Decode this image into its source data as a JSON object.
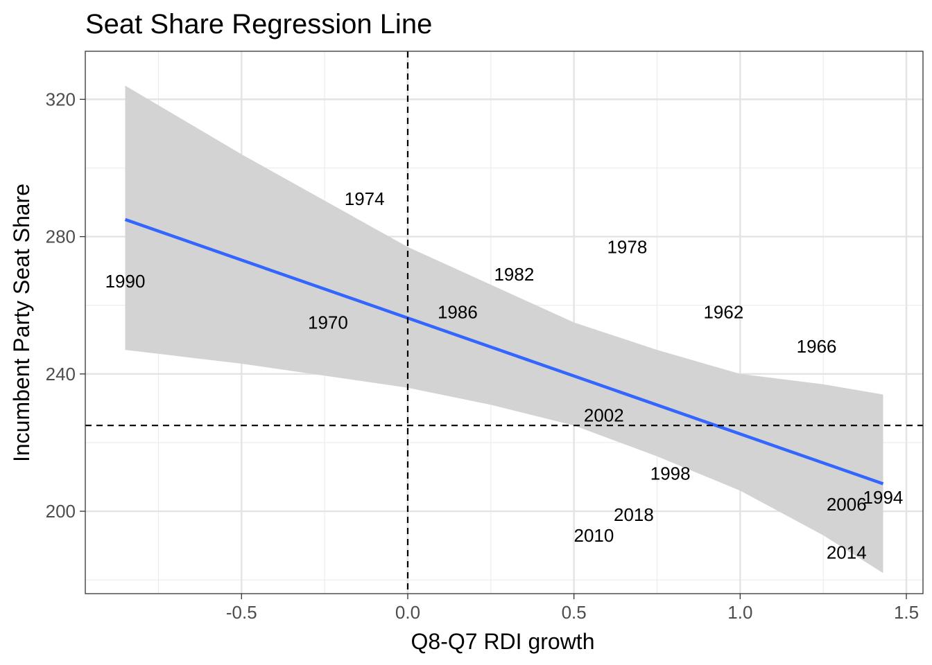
{
  "chart_data": {
    "type": "scatter",
    "title": "Seat Share Regression Line",
    "xlabel": "Q8-Q7 RDI growth",
    "ylabel": "Incumbent Party Seat Share",
    "xlim": [
      -0.97,
      1.55
    ],
    "ylim": [
      176,
      334
    ],
    "x_ticks": [
      -0.5,
      0.0,
      0.5,
      1.0,
      1.5
    ],
    "x_tick_labels": [
      "-0.5",
      "0.0",
      "0.5",
      "1.0",
      "1.5"
    ],
    "y_ticks": [
      200,
      240,
      280,
      320
    ],
    "y_tick_labels": [
      "200",
      "240",
      "280",
      "320"
    ],
    "grid": true,
    "points": [
      {
        "label": "1962",
        "x": 0.95,
        "y": 258
      },
      {
        "label": "1966",
        "x": 1.23,
        "y": 248
      },
      {
        "label": "1970",
        "x": -0.24,
        "y": 255
      },
      {
        "label": "1974",
        "x": -0.13,
        "y": 291
      },
      {
        "label": "1978",
        "x": 0.66,
        "y": 277
      },
      {
        "label": "1982",
        "x": 0.32,
        "y": 269
      },
      {
        "label": "1986",
        "x": 0.15,
        "y": 258
      },
      {
        "label": "1990",
        "x": -0.85,
        "y": 267
      },
      {
        "label": "1994",
        "x": 1.43,
        "y": 204
      },
      {
        "label": "1998",
        "x": 0.79,
        "y": 211
      },
      {
        "label": "2002",
        "x": 0.59,
        "y": 228
      },
      {
        "label": "2006",
        "x": 1.32,
        "y": 202
      },
      {
        "label": "2010",
        "x": 0.56,
        "y": 193
      },
      {
        "label": "2014",
        "x": 1.32,
        "y": 188
      },
      {
        "label": "2018",
        "x": 0.68,
        "y": 199
      }
    ],
    "regression_line": {
      "color": "#3366ff",
      "x": [
        -0.85,
        1.43
      ],
      "y": [
        285,
        208
      ]
    },
    "confidence_band": {
      "color": "#d3d3d3",
      "x": [
        -0.85,
        -0.5,
        0.0,
        0.25,
        0.5,
        0.75,
        1.0,
        1.25,
        1.43
      ],
      "upper": [
        324,
        304,
        277,
        266,
        255,
        247,
        240,
        237,
        234
      ],
      "lower": [
        247,
        243,
        236,
        231,
        225,
        216,
        206,
        193,
        182
      ]
    },
    "reference_lines": {
      "vertical_x": 0.0,
      "horizontal_y": 225
    }
  }
}
